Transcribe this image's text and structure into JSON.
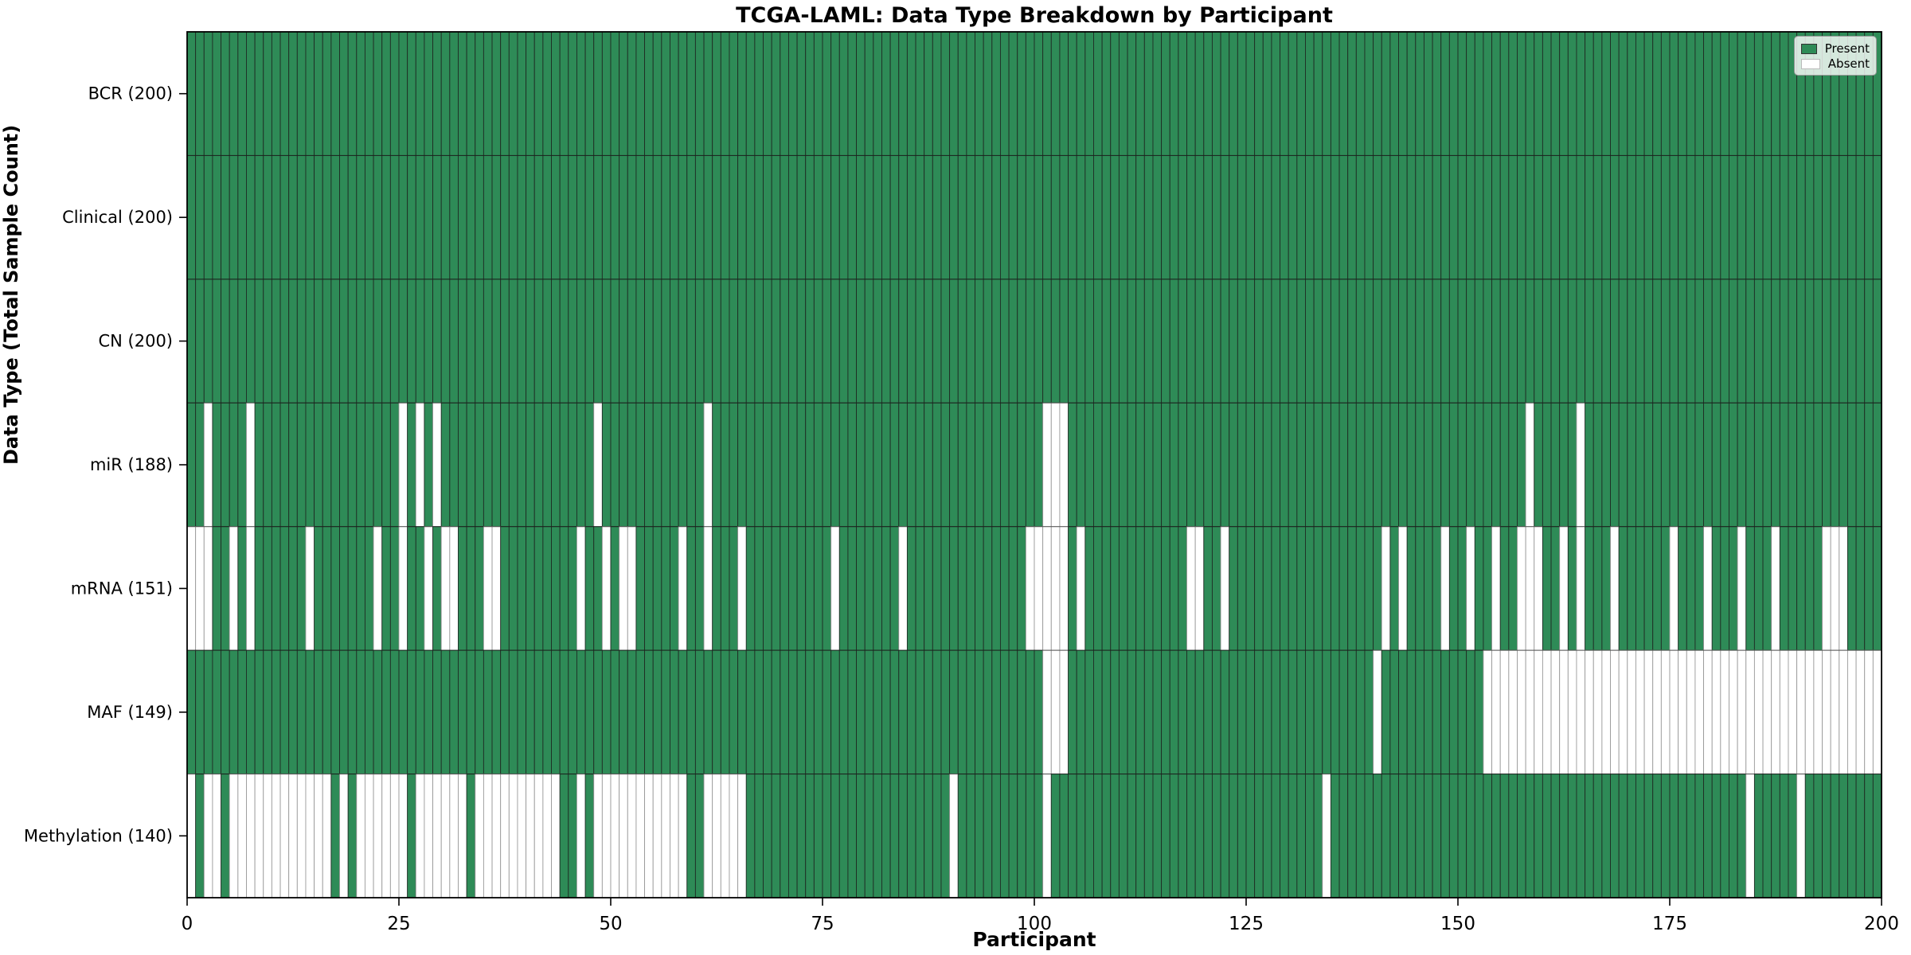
{
  "chart_data": {
    "type": "heatmap",
    "title": "TCGA-LAML: Data Type Breakdown by Participant",
    "xlabel": "Participant",
    "ylabel": "Data Type (Total Sample Count)",
    "n_participants": 200,
    "x_ticks": [
      0,
      25,
      50,
      75,
      100,
      125,
      150,
      175,
      200
    ],
    "grid": false,
    "legend": {
      "position": "upper right",
      "entries": [
        {
          "label": "Present",
          "color": "#2e8b57"
        },
        {
          "label": "Absent",
          "color": "#ffffff"
        }
      ]
    },
    "colors": {
      "present": "#2e8b57",
      "absent": "#ffffff",
      "cell_edge_present": "#1f2d24",
      "cell_edge_absent": "#9a9a9a",
      "spine": "#000000",
      "row_divider": "#1a1a1a"
    },
    "rows": [
      {
        "label": "BCR (200)",
        "name": "BCR",
        "present_total": 200,
        "absent_cols": []
      },
      {
        "label": "Clinical (200)",
        "name": "Clinical",
        "present_total": 200,
        "absent_cols": []
      },
      {
        "label": "CN (200)",
        "name": "CN",
        "present_total": 200,
        "absent_cols": []
      },
      {
        "label": "miR (188)",
        "name": "miR",
        "present_total": 188,
        "absent_cols": [
          2,
          7,
          25,
          27,
          29,
          48,
          61,
          101,
          102,
          103,
          158,
          164
        ]
      },
      {
        "label": "mRNA (151)",
        "name": "mRNA",
        "present_total": 151,
        "absent_cols": [
          0,
          1,
          2,
          5,
          7,
          14,
          22,
          25,
          28,
          30,
          31,
          35,
          36,
          46,
          49,
          51,
          52,
          58,
          61,
          65,
          76,
          84,
          99,
          100,
          101,
          102,
          103,
          105,
          118,
          119,
          122,
          141,
          143,
          148,
          151,
          154,
          157,
          158,
          159,
          162,
          164,
          168,
          175,
          179,
          183,
          187,
          193,
          194,
          195
        ]
      },
      {
        "label": "MAF (149)",
        "name": "MAF",
        "present_total": 149,
        "absent_cols": [
          101,
          102,
          103,
          140,
          153,
          154,
          155,
          156,
          157,
          158,
          159,
          160,
          161,
          162,
          163,
          164,
          165,
          166,
          167,
          168,
          169,
          170,
          171,
          172,
          173,
          174,
          175,
          176,
          177,
          178,
          179,
          180,
          181,
          182,
          183,
          184,
          185,
          186,
          187,
          188,
          189,
          190,
          191,
          192,
          193,
          194,
          195,
          196,
          197,
          198,
          199
        ]
      },
      {
        "label": "Methylation (140)",
        "name": "Methylation",
        "present_total": 140,
        "absent_cols": [
          0,
          2,
          3,
          5,
          6,
          7,
          8,
          9,
          10,
          11,
          12,
          13,
          14,
          15,
          16,
          18,
          20,
          21,
          22,
          23,
          24,
          25,
          27,
          28,
          29,
          30,
          31,
          32,
          34,
          35,
          36,
          37,
          38,
          39,
          40,
          41,
          42,
          43,
          46,
          48,
          49,
          50,
          51,
          52,
          53,
          54,
          55,
          56,
          57,
          58,
          61,
          62,
          63,
          64,
          65,
          90,
          101,
          134,
          184,
          190
        ]
      }
    ]
  }
}
